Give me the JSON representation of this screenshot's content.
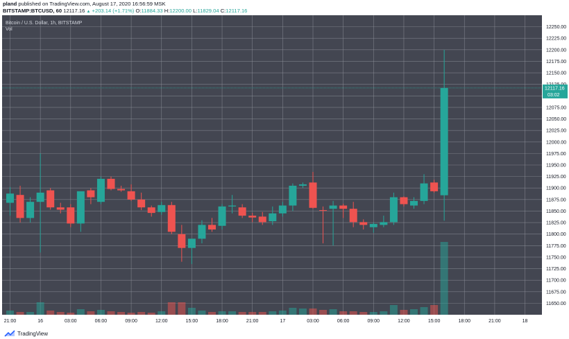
{
  "header": {
    "author": "pland",
    "published_text": "published on TradingView.com, August 17, 2020 16:56:59 MSK",
    "symbol": "BITSTAMP:BTCUSD, 60",
    "last_price": "12117.16",
    "change": "+203.14 (+1.71%)",
    "o_label": "O:",
    "o_value": "11884.33",
    "h_label": "H:",
    "h_value": "12200.00",
    "l_label": "L:",
    "l_value": "11829.04",
    "c_label": "C:",
    "c_value": "12117.16"
  },
  "legend": {
    "title": "Bitcoin / U.S. Dollar, 1h, BITSTAMP",
    "volume_label": "Vol"
  },
  "price_tag": {
    "price": "12117.16",
    "countdown": "03:02"
  },
  "footer": {
    "brand": "TradingView"
  },
  "colors": {
    "background": "#434651",
    "grid": "#9598a1",
    "up": "#26a69a",
    "down": "#ef5350",
    "text": "#131722"
  },
  "chart_data": {
    "type": "candlestick",
    "title": "Bitcoin / U.S. Dollar, 1h, BITSTAMP",
    "ylim": [
      11625,
      12275
    ],
    "y_ticks": [
      11650,
      11675,
      11700,
      11725,
      11750,
      11775,
      11800,
      11825,
      11850,
      11875,
      11900,
      11925,
      11950,
      11975,
      12000,
      12025,
      12050,
      12075,
      12100,
      12125,
      12150,
      12175,
      12200,
      12225,
      12250
    ],
    "x_tick_labels": [
      "21:00",
      "16",
      "03:00",
      "06:00",
      "09:00",
      "12:00",
      "15:00",
      "18:00",
      "21:00",
      "17",
      "03:00",
      "06:00",
      "09:00",
      "12:00",
      "15:00",
      "18:00",
      "21:00",
      "18"
    ],
    "candles": [
      {
        "o": 11868,
        "h": 11902,
        "l": 11840,
        "c": 11888
      },
      {
        "o": 11885,
        "h": 11905,
        "l": 11825,
        "c": 11835
      },
      {
        "o": 11835,
        "h": 11880,
        "l": 11825,
        "c": 11870
      },
      {
        "o": 11870,
        "h": 11975,
        "l": 11760,
        "c": 11890
      },
      {
        "o": 11895,
        "h": 11900,
        "l": 11853,
        "c": 11858
      },
      {
        "o": 11858,
        "h": 11868,
        "l": 11845,
        "c": 11853
      },
      {
        "o": 11858,
        "h": 11865,
        "l": 11815,
        "c": 11823
      },
      {
        "o": 11823,
        "h": 11892,
        "l": 11805,
        "c": 11893
      },
      {
        "o": 11895,
        "h": 11900,
        "l": 11865,
        "c": 11880
      },
      {
        "o": 11870,
        "h": 11925,
        "l": 11865,
        "c": 11920
      },
      {
        "o": 11920,
        "h": 11925,
        "l": 11895,
        "c": 11898
      },
      {
        "o": 11898,
        "h": 11905,
        "l": 11892,
        "c": 11895
      },
      {
        "o": 11893,
        "h": 11908,
        "l": 11872,
        "c": 11875
      },
      {
        "o": 11875,
        "h": 11890,
        "l": 11852,
        "c": 11858
      },
      {
        "o": 11858,
        "h": 11862,
        "l": 11838,
        "c": 11846
      },
      {
        "o": 11848,
        "h": 11870,
        "l": 11842,
        "c": 11863
      },
      {
        "o": 11863,
        "h": 11870,
        "l": 11800,
        "c": 11805
      },
      {
        "o": 11800,
        "h": 11820,
        "l": 11740,
        "c": 11770
      },
      {
        "o": 11770,
        "h": 11785,
        "l": 11735,
        "c": 11790
      },
      {
        "o": 11790,
        "h": 11830,
        "l": 11780,
        "c": 11820
      },
      {
        "o": 11820,
        "h": 11835,
        "l": 11805,
        "c": 11810
      },
      {
        "o": 11818,
        "h": 11865,
        "l": 11810,
        "c": 11860
      },
      {
        "o": 11860,
        "h": 11885,
        "l": 11845,
        "c": 11862
      },
      {
        "o": 11858,
        "h": 11865,
        "l": 11835,
        "c": 11840
      },
      {
        "o": 11840,
        "h": 11846,
        "l": 11826,
        "c": 11836
      },
      {
        "o": 11838,
        "h": 11848,
        "l": 11820,
        "c": 11826
      },
      {
        "o": 11828,
        "h": 11860,
        "l": 11820,
        "c": 11845
      },
      {
        "o": 11845,
        "h": 11870,
        "l": 11838,
        "c": 11862
      },
      {
        "o": 11862,
        "h": 11910,
        "l": 11850,
        "c": 11905
      },
      {
        "o": 11905,
        "h": 11912,
        "l": 11900,
        "c": 11908
      },
      {
        "o": 11912,
        "h": 11935,
        "l": 11855,
        "c": 11857
      },
      {
        "o": 11852,
        "h": 11860,
        "l": 11780,
        "c": 11851
      },
      {
        "o": 11855,
        "h": 11872,
        "l": 11775,
        "c": 11862
      },
      {
        "o": 11862,
        "h": 11866,
        "l": 11835,
        "c": 11855
      },
      {
        "o": 11855,
        "h": 11870,
        "l": 11815,
        "c": 11826
      },
      {
        "o": 11826,
        "h": 11832,
        "l": 11810,
        "c": 11820
      },
      {
        "o": 11815,
        "h": 11825,
        "l": 11803,
        "c": 11822
      },
      {
        "o": 11820,
        "h": 11840,
        "l": 11815,
        "c": 11826
      },
      {
        "o": 11826,
        "h": 11890,
        "l": 11820,
        "c": 11880
      },
      {
        "o": 11880,
        "h": 11882,
        "l": 11860,
        "c": 11865
      },
      {
        "o": 11862,
        "h": 11880,
        "l": 11855,
        "c": 11872
      },
      {
        "o": 11872,
        "h": 11930,
        "l": 11865,
        "c": 11910
      },
      {
        "o": 11912,
        "h": 11918,
        "l": 11890,
        "c": 11893
      },
      {
        "o": 11884.33,
        "h": 12200,
        "l": 11829.04,
        "c": 12117.16
      }
    ],
    "volume": [
      6,
      4,
      4,
      18,
      6,
      4,
      3,
      8,
      5,
      7,
      5,
      4,
      3,
      4,
      3,
      5,
      18,
      18,
      10,
      6,
      4,
      5,
      5,
      4,
      4,
      4,
      5,
      6,
      10,
      9,
      9,
      7,
      8,
      5,
      5,
      4,
      4,
      5,
      14,
      7,
      8,
      11,
      14,
      105
    ]
  }
}
